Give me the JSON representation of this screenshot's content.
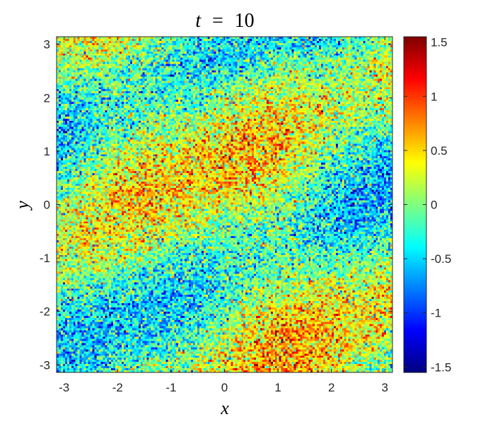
{
  "chart_data": {
    "type": "heatmap",
    "title": {
      "variable": "t",
      "operator": "=",
      "value": "10"
    },
    "xlabel": "x",
    "ylabel": "y",
    "xlim": [
      -3.14159,
      3.14159
    ],
    "ylim": [
      -3.14159,
      3.14159
    ],
    "x_ticks": [
      -3,
      -2,
      -1,
      0,
      1,
      2,
      3
    ],
    "x_tick_labels": [
      "-3",
      "-2",
      "-1",
      "0",
      "1",
      "2",
      "3"
    ],
    "y_ticks": [
      -3,
      -2,
      -1,
      0,
      1,
      2,
      3
    ],
    "y_tick_labels": [
      "-3",
      "-2",
      "-1",
      "0",
      "1",
      "2",
      "3"
    ],
    "colorbar": {
      "colormap": "jet",
      "clim": [
        -1.55,
        1.55
      ],
      "ticks": [
        -1.5,
        -1,
        -0.5,
        0,
        0.5,
        1,
        1.5
      ],
      "tick_labels": [
        "-1.5",
        "-1",
        "-0.5",
        "0",
        "0.5",
        "1",
        "1.5"
      ]
    },
    "grid": false,
    "field_description": "noisy smooth field: large-scale diagonal bands (alternating high and low values running from lower-left to upper-right) plus strong per-cell random noise",
    "grid_resolution": [
      160,
      160
    ]
  }
}
